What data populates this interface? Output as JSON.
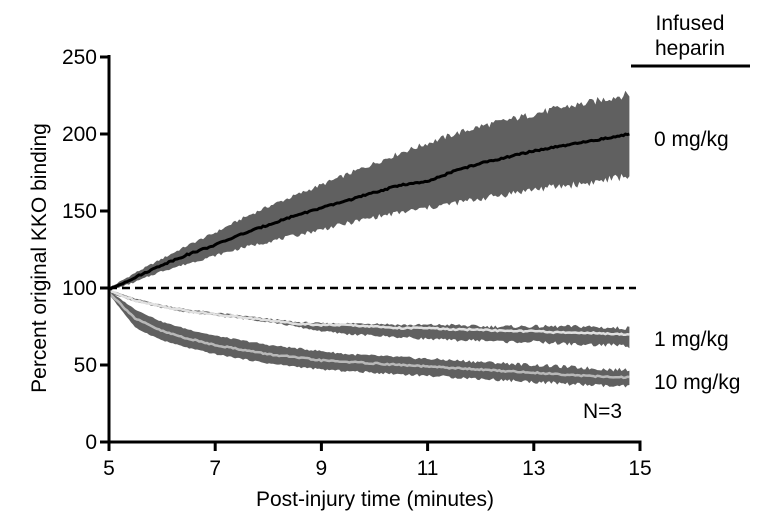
{
  "chart_data": {
    "type": "area",
    "xlabel": "Post-injury time (minutes)",
    "ylabel": "Percent original KKO binding",
    "xlim": [
      5,
      15
    ],
    "ylim": [
      0,
      250
    ],
    "xticks": [
      5,
      7,
      9,
      11,
      13,
      15
    ],
    "yticks": [
      0,
      50,
      100,
      150,
      200,
      250
    ],
    "grid": false,
    "legend_title": "Infused heparin",
    "legend_placement": "top-right",
    "annotation": "N=3",
    "reference_line": {
      "y": 100,
      "style": "dashed"
    },
    "series": [
      {
        "name": "0 mg/kg",
        "mean_color": "#000000",
        "band_color": "#606060",
        "x": [
          5.0,
          5.5,
          6.0,
          6.5,
          7.0,
          7.5,
          8.0,
          8.5,
          9.0,
          9.5,
          10.0,
          10.5,
          11.0,
          11.5,
          12.0,
          12.5,
          13.0,
          13.5,
          14.0,
          14.5,
          14.8
        ],
        "mean": [
          99,
          107,
          115,
          122,
          128,
          135,
          141,
          147,
          152,
          157,
          162,
          167,
          169,
          176,
          181,
          185,
          189,
          192,
          195,
          198,
          200
        ],
        "upper": [
          100,
          110,
          119,
          128,
          136,
          145,
          153,
          160,
          167,
          174,
          181,
          188,
          194,
          200,
          205,
          209,
          213,
          217,
          220,
          224,
          226
        ],
        "lower": [
          98,
          104,
          111,
          116,
          121,
          126,
          130,
          134,
          138,
          142,
          146,
          149,
          152,
          155,
          158,
          161,
          164,
          166,
          168,
          171,
          173
        ]
      },
      {
        "name": "1 mg/kg",
        "mean_color": "#e0e0e0",
        "band_color": "#606060",
        "x": [
          5.0,
          5.5,
          6.0,
          6.5,
          7.0,
          7.5,
          8.0,
          8.5,
          9.0,
          9.5,
          10.0,
          10.5,
          11.0,
          11.5,
          12.0,
          12.5,
          13.0,
          13.5,
          14.0,
          14.5,
          14.8
        ],
        "mean": [
          98,
          92,
          88,
          85,
          83,
          81,
          79,
          77,
          76,
          76,
          75,
          74,
          74,
          73,
          73,
          72,
          72,
          71,
          71,
          70,
          70
        ],
        "upper": [
          99,
          93,
          89,
          86,
          84,
          82,
          80,
          78,
          77,
          77,
          77,
          76,
          76,
          76,
          75,
          75,
          75,
          75,
          75,
          74,
          74
        ],
        "lower": [
          97,
          91,
          87,
          84,
          82,
          80,
          78,
          75,
          72,
          70,
          69,
          68,
          67,
          66,
          66,
          65,
          65,
          64,
          63,
          63,
          62
        ]
      },
      {
        "name": "10 mg/kg",
        "mean_color": "#b8b8b8",
        "band_color": "#606060",
        "x": [
          5.0,
          5.5,
          6.0,
          6.5,
          7.0,
          7.5,
          8.0,
          8.5,
          9.0,
          9.5,
          10.0,
          10.5,
          11.0,
          11.5,
          12.0,
          12.5,
          13.0,
          13.5,
          14.0,
          14.5,
          14.8
        ],
        "mean": [
          97,
          80,
          72,
          67,
          63,
          60,
          57,
          55,
          53,
          52,
          51,
          50,
          49,
          48,
          47,
          46,
          45,
          44,
          43,
          42,
          42
        ],
        "upper": [
          98,
          86,
          78,
          73,
          69,
          66,
          63,
          61,
          59,
          57,
          56,
          55,
          54,
          53,
          52,
          51,
          50,
          49,
          48,
          47,
          47
        ],
        "lower": [
          96,
          74,
          66,
          61,
          57,
          54,
          51,
          49,
          47,
          46,
          45,
          44,
          43,
          42,
          41,
          40,
          39,
          38,
          37,
          36,
          36
        ]
      }
    ]
  }
}
